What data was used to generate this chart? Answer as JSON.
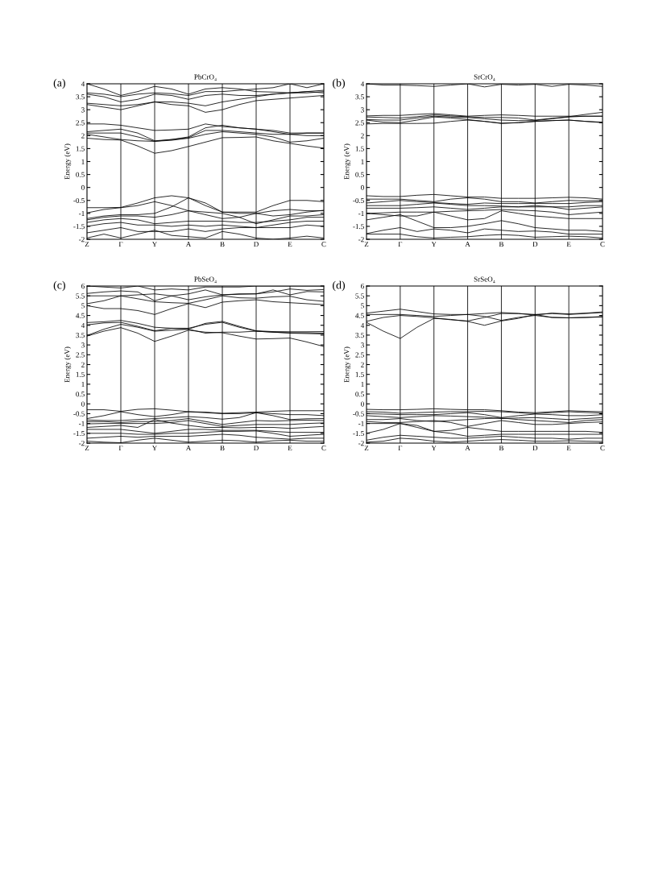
{
  "chart_data": [
    {
      "type": "line",
      "title": "PbCrO₄",
      "ylabel": "Energy (eV)",
      "annotations": [
        "(a)"
      ],
      "legend": false,
      "grid": "x",
      "marker": "none",
      "line_style": "solid",
      "categories": [
        "Z",
        null,
        "Γ",
        null,
        "Y",
        null,
        "A",
        null,
        "B",
        null,
        "D",
        null,
        "E",
        null,
        "C"
      ],
      "ylim": [
        -2,
        4
      ],
      "yticks": [
        -2,
        -1.5,
        -1,
        -0.5,
        0,
        0.5,
        1,
        1.5,
        2,
        2.5,
        3,
        3.5,
        4
      ],
      "series": [
        {
          "color": "#000000",
          "values": [
            1.9,
            1.85,
            1.83,
            1.6,
            1.32,
            1.42,
            1.58,
            1.75,
            1.92,
            1.93,
            1.95,
            1.8,
            1.7,
            1.6,
            1.52
          ]
        },
        {
          "color": "#000000",
          "values": [
            2.05,
            1.95,
            1.85,
            1.8,
            1.78,
            1.82,
            1.9,
            2.05,
            2.15,
            2.1,
            2.05,
            1.95,
            1.75,
            1.8,
            1.9
          ]
        },
        {
          "color": "#000000",
          "values": [
            2.1,
            2.1,
            2.1,
            1.95,
            1.78,
            1.85,
            1.92,
            2.2,
            2.2,
            2.15,
            2.1,
            2.05,
            2.05,
            2.0,
            2.0
          ]
        },
        {
          "color": "#000000",
          "values": [
            2.15,
            2.2,
            2.25,
            2.1,
            1.8,
            1.85,
            1.95,
            2.3,
            2.4,
            2.3,
            2.25,
            2.15,
            2.05,
            2.1,
            2.1
          ]
        },
        {
          "color": "#000000",
          "values": [
            2.45,
            2.45,
            2.4,
            2.3,
            2.2,
            2.22,
            2.25,
            2.45,
            2.35,
            2.3,
            2.25,
            2.2,
            2.1,
            2.1,
            2.1
          ]
        },
        {
          "color": "#000000",
          "values": [
            3.2,
            3.1,
            3.0,
            3.15,
            3.3,
            3.2,
            3.15,
            2.9,
            3.0,
            3.2,
            3.35,
            3.4,
            3.45,
            3.5,
            3.55
          ]
        },
        {
          "color": "#000000",
          "values": [
            3.25,
            3.2,
            3.15,
            3.2,
            3.3,
            3.3,
            3.25,
            3.15,
            3.3,
            3.4,
            3.5,
            3.6,
            3.65,
            3.65,
            3.7
          ]
        },
        {
          "color": "#000000",
          "values": [
            3.6,
            3.5,
            3.3,
            3.4,
            3.6,
            3.55,
            3.4,
            3.55,
            3.6,
            3.55,
            3.55,
            3.6,
            3.65,
            3.7,
            3.75
          ]
        },
        {
          "color": "#000000",
          "values": [
            3.65,
            3.6,
            3.5,
            3.6,
            3.65,
            3.62,
            3.55,
            3.7,
            3.7,
            3.75,
            3.8,
            3.85,
            4.0,
            3.85,
            4.0
          ]
        },
        {
          "color": "#000000",
          "values": [
            4.0,
            3.8,
            3.55,
            3.7,
            3.9,
            3.8,
            3.6,
            3.8,
            3.85,
            3.8,
            3.7,
            3.68,
            3.65,
            3.7,
            3.65
          ]
        },
        {
          "color": "#000000",
          "values": [
            -0.78,
            -0.78,
            -0.77,
            -0.6,
            -0.4,
            -0.32,
            -0.4,
            -0.7,
            -0.95,
            -0.95,
            -0.95,
            -0.7,
            -0.5,
            -0.5,
            -0.55
          ]
        },
        {
          "color": "#000000",
          "values": [
            -0.98,
            -0.85,
            -0.78,
            -0.7,
            -0.55,
            -0.7,
            -0.9,
            -1.05,
            -1.2,
            -1.15,
            -1.0,
            -0.9,
            -0.85,
            -0.9,
            -0.9
          ]
        },
        {
          "color": "#000000",
          "values": [
            -1.2,
            -1.1,
            -1.05,
            -1.05,
            -1.0,
            -0.75,
            -0.4,
            -0.6,
            -0.95,
            -1.0,
            -1.0,
            -1.1,
            -1.05,
            -0.95,
            -0.88
          ]
        },
        {
          "color": "#000000",
          "values": [
            -1.25,
            -1.15,
            -1.1,
            -1.1,
            -1.15,
            -1.05,
            -0.9,
            -0.95,
            -1.0,
            -1.15,
            -1.4,
            -1.25,
            -1.1,
            -1.1,
            -1.05
          ]
        },
        {
          "color": "#000000",
          "values": [
            -1.35,
            -1.25,
            -1.2,
            -1.25,
            -1.4,
            -1.35,
            -1.3,
            -1.3,
            -1.3,
            -1.35,
            -1.35,
            -1.3,
            -1.25,
            -1.15,
            -1.15
          ]
        },
        {
          "color": "#000000",
          "values": [
            -1.5,
            -1.4,
            -1.35,
            -1.45,
            -1.45,
            -1.5,
            -1.45,
            -1.5,
            -1.45,
            -1.5,
            -1.55,
            -1.45,
            -1.35,
            -1.3,
            -1.3
          ]
        },
        {
          "color": "#000000",
          "values": [
            -1.75,
            -1.65,
            -1.55,
            -1.7,
            -1.7,
            -1.7,
            -1.6,
            -1.7,
            -1.6,
            -1.55,
            -1.55,
            -1.55,
            -1.55,
            -1.45,
            -1.5
          ]
        },
        {
          "color": "#000000",
          "values": [
            -1.95,
            -1.8,
            -1.95,
            -1.8,
            -1.65,
            -1.85,
            -1.9,
            -1.95,
            -1.7,
            -1.8,
            -1.95,
            -2.0,
            -1.95,
            -1.88,
            -1.95
          ]
        }
      ]
    },
    {
      "type": "line",
      "title": "SrCrO₄",
      "ylabel": "Energy (eV)",
      "annotations": [
        "(b)"
      ],
      "legend": false,
      "grid": "x",
      "marker": "none",
      "line_style": "solid",
      "categories": [
        "Z",
        null,
        "Γ",
        null,
        "Y",
        null,
        "A",
        null,
        "B",
        null,
        "D",
        null,
        "E",
        null,
        "C"
      ],
      "ylim": [
        -2,
        4
      ],
      "yticks": [
        -2,
        -1.5,
        -1,
        -0.5,
        0,
        0.5,
        1,
        1.5,
        2,
        2.5,
        3,
        3.5,
        4
      ],
      "series": [
        {
          "color": "#000000",
          "values": [
            2.45,
            2.47,
            2.47,
            2.47,
            2.48,
            2.55,
            2.6,
            2.55,
            2.47,
            2.5,
            2.55,
            2.58,
            2.6,
            2.55,
            2.5
          ]
        },
        {
          "color": "#000000",
          "values": [
            2.6,
            2.52,
            2.5,
            2.6,
            2.72,
            2.68,
            2.62,
            2.55,
            2.48,
            2.5,
            2.55,
            2.58,
            2.6,
            2.55,
            2.52
          ]
        },
        {
          "color": "#000000",
          "values": [
            2.62,
            2.6,
            2.6,
            2.68,
            2.75,
            2.72,
            2.7,
            2.65,
            2.6,
            2.58,
            2.58,
            2.65,
            2.72,
            2.75,
            2.75
          ]
        },
        {
          "color": "#000000",
          "values": [
            2.72,
            2.7,
            2.68,
            2.73,
            2.8,
            2.76,
            2.73,
            2.7,
            2.7,
            2.68,
            2.6,
            2.67,
            2.73,
            2.82,
            2.9
          ]
        },
        {
          "color": "#000000",
          "values": [
            2.76,
            2.78,
            2.78,
            2.82,
            2.85,
            2.8,
            2.75,
            2.78,
            2.8,
            2.78,
            2.75,
            2.75,
            2.75,
            2.75,
            2.75
          ]
        },
        {
          "color": "#000000",
          "values": [
            4.0,
            3.95,
            3.95,
            3.93,
            3.9,
            3.95,
            4.0,
            3.88,
            3.98,
            3.95,
            3.98,
            3.9,
            3.98,
            3.95,
            3.9
          ]
        },
        {
          "color": "#000000",
          "values": [
            -0.32,
            -0.35,
            -0.35,
            -0.3,
            -0.27,
            -0.32,
            -0.37,
            -0.37,
            -0.42,
            -0.42,
            -0.42,
            -0.4,
            -0.38,
            -0.4,
            -0.45
          ]
        },
        {
          "color": "#000000",
          "values": [
            -0.45,
            -0.45,
            -0.45,
            -0.5,
            -0.55,
            -0.45,
            -0.4,
            -0.45,
            -0.55,
            -0.55,
            -0.6,
            -0.55,
            -0.5,
            -0.52,
            -0.5
          ]
        },
        {
          "color": "#000000",
          "values": [
            -0.6,
            -0.55,
            -0.5,
            -0.55,
            -0.58,
            -0.62,
            -0.65,
            -0.6,
            -0.62,
            -0.62,
            -0.62,
            -0.62,
            -0.62,
            -0.58,
            -0.55
          ]
        },
        {
          "color": "#000000",
          "values": [
            -0.7,
            -0.7,
            -0.7,
            -0.65,
            -0.6,
            -0.65,
            -0.7,
            -0.7,
            -0.72,
            -0.75,
            -0.75,
            -0.75,
            -0.75,
            -0.7,
            -0.7
          ]
        },
        {
          "color": "#000000",
          "values": [
            -0.8,
            -0.8,
            -0.8,
            -0.78,
            -0.75,
            -0.8,
            -0.85,
            -0.8,
            -0.75,
            -0.75,
            -0.7,
            -0.75,
            -0.85,
            -0.8,
            -0.75
          ]
        },
        {
          "color": "#000000",
          "values": [
            -1.0,
            -0.98,
            -0.95,
            -0.95,
            -0.95,
            -0.92,
            -0.9,
            -0.88,
            -0.85,
            -0.88,
            -0.9,
            -0.95,
            -1.05,
            -1.0,
            -0.95
          ]
        },
        {
          "color": "#000000",
          "values": [
            -1.0,
            -1.05,
            -1.1,
            -1.1,
            -0.95,
            -1.1,
            -1.25,
            -1.2,
            -0.9,
            -1.0,
            -1.1,
            -1.15,
            -1.2,
            -1.2,
            -1.2
          ]
        },
        {
          "color": "#000000",
          "values": [
            -1.25,
            -1.15,
            -1.05,
            -1.3,
            -1.55,
            -1.55,
            -1.5,
            -1.4,
            -1.28,
            -1.4,
            -1.55,
            -1.6,
            -1.65,
            -1.65,
            -1.7
          ]
        },
        {
          "color": "#000000",
          "values": [
            -1.78,
            -1.65,
            -1.55,
            -1.7,
            -1.6,
            -1.65,
            -1.75,
            -1.6,
            -1.65,
            -1.7,
            -1.68,
            -1.72,
            -1.8,
            -1.8,
            -1.8
          ]
        },
        {
          "color": "#000000",
          "values": [
            -1.8,
            -1.8,
            -1.8,
            -1.9,
            -1.95,
            -1.92,
            -1.9,
            -1.85,
            -1.82,
            -1.85,
            -1.92,
            -1.9,
            -1.88,
            -1.9,
            -1.95
          ]
        }
      ]
    },
    {
      "type": "line",
      "title": "PbSeO₄",
      "ylabel": "Energy (eV)",
      "annotations": [
        "(c)"
      ],
      "legend": false,
      "grid": "x",
      "marker": "none",
      "line_style": "solid",
      "categories": [
        "Z",
        null,
        "Γ",
        null,
        "Y",
        null,
        "A",
        null,
        "B",
        null,
        "D",
        null,
        "E",
        null,
        "C"
      ],
      "ylim": [
        -2,
        6
      ],
      "yticks": [
        -2,
        -1.5,
        -1,
        -0.5,
        0,
        0.5,
        1,
        1.5,
        2,
        2.5,
        3,
        3.5,
        4,
        4.5,
        5,
        5.5,
        6
      ],
      "series": [
        {
          "color": "#000000",
          "values": [
            3.45,
            3.7,
            3.88,
            3.6,
            3.18,
            3.45,
            3.75,
            3.65,
            3.62,
            3.45,
            3.3,
            3.32,
            3.35,
            3.15,
            2.92
          ]
        },
        {
          "color": "#000000",
          "values": [
            3.48,
            3.8,
            4.05,
            3.9,
            3.7,
            3.75,
            3.8,
            3.6,
            3.65,
            3.65,
            3.7,
            3.65,
            3.62,
            3.62,
            3.6
          ]
        },
        {
          "color": "#000000",
          "values": [
            4.02,
            4.12,
            4.15,
            3.95,
            3.72,
            3.85,
            3.85,
            4.05,
            4.15,
            3.9,
            3.7,
            3.65,
            3.6,
            3.58,
            3.56
          ]
        },
        {
          "color": "#000000",
          "values": [
            4.14,
            4.18,
            4.25,
            4.1,
            3.9,
            3.85,
            3.8,
            4.1,
            4.2,
            3.95,
            3.72,
            3.68,
            3.67,
            3.67,
            3.68
          ]
        },
        {
          "color": "#000000",
          "values": [
            5.0,
            4.85,
            4.85,
            4.75,
            4.55,
            4.85,
            5.1,
            4.9,
            5.18,
            5.25,
            5.3,
            5.2,
            5.15,
            5.1,
            5.05
          ]
        },
        {
          "color": "#000000",
          "values": [
            5.1,
            5.25,
            5.5,
            5.35,
            5.2,
            5.15,
            5.12,
            5.3,
            5.5,
            5.4,
            5.38,
            5.45,
            5.48,
            5.3,
            5.22
          ]
        },
        {
          "color": "#000000",
          "values": [
            5.5,
            5.5,
            5.5,
            5.55,
            5.6,
            5.5,
            5.3,
            5.45,
            5.55,
            5.6,
            5.6,
            5.8,
            5.55,
            5.72,
            5.7
          ]
        },
        {
          "color": "#000000",
          "values": [
            5.62,
            5.7,
            5.75,
            5.7,
            5.25,
            5.5,
            5.6,
            5.8,
            5.55,
            5.58,
            5.6,
            5.7,
            5.85,
            5.78,
            5.82
          ]
        },
        {
          "color": "#000000",
          "values": [
            6.0,
            5.95,
            5.9,
            6.0,
            5.8,
            5.85,
            5.8,
            5.95,
            5.95,
            5.95,
            6.0,
            6.0,
            6.0,
            6.0,
            6.0
          ]
        },
        {
          "color": "#000000",
          "values": [
            -0.3,
            -0.3,
            -0.38,
            -0.28,
            -0.25,
            -0.32,
            -0.4,
            -0.42,
            -0.48,
            -0.45,
            -0.42,
            -0.38,
            -0.35,
            -0.35,
            -0.35
          ]
        },
        {
          "color": "#000000",
          "values": [
            -0.75,
            -0.6,
            -0.4,
            -0.55,
            -0.65,
            -0.55,
            -0.4,
            -0.45,
            -0.5,
            -0.5,
            -0.45,
            -0.5,
            -0.55,
            -0.55,
            -0.6
          ]
        },
        {
          "color": "#000000",
          "values": [
            -0.82,
            -0.85,
            -0.85,
            -0.8,
            -0.75,
            -0.7,
            -0.65,
            -0.7,
            -0.78,
            -0.7,
            -0.45,
            -0.6,
            -0.8,
            -0.76,
            -0.75
          ]
        },
        {
          "color": "#000000",
          "values": [
            -0.91,
            -0.9,
            -0.95,
            -0.9,
            -0.9,
            -0.85,
            -0.75,
            -0.9,
            -1.05,
            -0.95,
            -0.85,
            -0.88,
            -0.85,
            -0.83,
            -0.85
          ]
        },
        {
          "color": "#000000",
          "values": [
            -1.02,
            -1.0,
            -1.0,
            -1.0,
            -1.0,
            -0.95,
            -0.85,
            -1.0,
            -1.15,
            -1.1,
            -1.05,
            -1.05,
            -1.05,
            -1.0,
            -0.97
          ]
        },
        {
          "color": "#000000",
          "values": [
            -1.2,
            -1.15,
            -1.1,
            -1.2,
            -0.8,
            -0.98,
            -1.1,
            -1.2,
            -1.2,
            -1.22,
            -1.2,
            -1.2,
            -1.25,
            -1.2,
            -1.15
          ]
        },
        {
          "color": "#000000",
          "values": [
            -1.3,
            -1.3,
            -1.3,
            -1.4,
            -1.5,
            -1.4,
            -1.3,
            -1.3,
            -1.35,
            -1.35,
            -1.35,
            -1.4,
            -1.45,
            -1.45,
            -1.45
          ]
        },
        {
          "color": "#000000",
          "values": [
            -1.5,
            -1.5,
            -1.5,
            -1.55,
            -1.55,
            -1.5,
            -1.5,
            -1.45,
            -1.4,
            -1.4,
            -1.38,
            -1.5,
            -1.65,
            -1.6,
            -1.55
          ]
        },
        {
          "color": "#000000",
          "values": [
            -1.75,
            -1.7,
            -1.65,
            -1.7,
            -1.65,
            -1.65,
            -1.65,
            -1.6,
            -1.55,
            -1.6,
            -1.7,
            -1.75,
            -1.8,
            -1.75,
            -1.75
          ]
        },
        {
          "color": "#000000",
          "values": [
            -1.9,
            -1.95,
            -1.98,
            -1.85,
            -1.75,
            -1.85,
            -1.95,
            -1.9,
            -1.85,
            -1.88,
            -1.95,
            -1.88,
            -1.85,
            -1.9,
            -1.9
          ]
        }
      ]
    },
    {
      "type": "line",
      "title": "SrSeO₄",
      "ylabel": "Energy (eV)",
      "annotations": [
        "(d)"
      ],
      "legend": false,
      "grid": "x",
      "marker": "none",
      "line_style": "solid",
      "categories": [
        "Z",
        null,
        "Γ",
        null,
        "Y",
        null,
        "A",
        null,
        "B",
        null,
        "D",
        null,
        "E",
        null,
        "C"
      ],
      "ylim": [
        -2,
        6
      ],
      "yticks": [
        -2,
        -1.5,
        -1,
        -0.5,
        0,
        0.5,
        1,
        1.5,
        2,
        2.5,
        3,
        3.5,
        4,
        4.5,
        5,
        5.5,
        6
      ],
      "series": [
        {
          "color": "#000000",
          "values": [
            4.15,
            3.7,
            3.33,
            3.9,
            4.35,
            4.3,
            4.2,
            4.0,
            4.22,
            4.35,
            4.55,
            4.4,
            4.38,
            4.4,
            4.42
          ]
        },
        {
          "color": "#000000",
          "values": [
            4.2,
            4.4,
            4.5,
            4.45,
            4.38,
            4.28,
            4.22,
            4.4,
            4.6,
            4.6,
            4.55,
            4.6,
            4.55,
            4.6,
            4.65
          ]
        },
        {
          "color": "#000000",
          "values": [
            4.55,
            4.55,
            4.55,
            4.5,
            4.45,
            4.5,
            4.55,
            4.45,
            4.25,
            4.4,
            4.5,
            4.4,
            4.38,
            4.4,
            4.45
          ]
        },
        {
          "color": "#000000",
          "values": [
            4.62,
            4.72,
            4.82,
            4.7,
            4.58,
            4.55,
            4.55,
            4.6,
            4.65,
            4.6,
            4.52,
            4.62,
            4.58,
            4.62,
            4.68
          ]
        },
        {
          "color": "#000000",
          "values": [
            -0.28,
            -0.3,
            -0.3,
            -0.28,
            -0.25,
            -0.28,
            -0.3,
            -0.3,
            -0.35,
            -0.42,
            -0.45,
            -0.4,
            -0.35,
            -0.38,
            -0.4
          ]
        },
        {
          "color": "#000000",
          "values": [
            -0.4,
            -0.42,
            -0.48,
            -0.45,
            -0.42,
            -0.4,
            -0.4,
            -0.38,
            -0.4,
            -0.45,
            -0.5,
            -0.45,
            -0.4,
            -0.44,
            -0.47
          ]
        },
        {
          "color": "#000000",
          "values": [
            -0.5,
            -0.52,
            -0.55,
            -0.55,
            -0.55,
            -0.5,
            -0.45,
            -0.55,
            -0.7,
            -0.6,
            -0.52,
            -0.55,
            -0.6,
            -0.6,
            -0.55
          ]
        },
        {
          "color": "#000000",
          "values": [
            -0.6,
            -0.65,
            -0.7,
            -0.65,
            -0.6,
            -0.62,
            -0.65,
            -0.68,
            -0.75,
            -0.72,
            -0.7,
            -0.75,
            -0.8,
            -0.75,
            -0.7
          ]
        },
        {
          "color": "#000000",
          "values": [
            -0.8,
            -0.8,
            -0.75,
            -0.85,
            -0.9,
            -0.85,
            -0.8,
            -0.75,
            -0.72,
            -0.8,
            -0.85,
            -0.9,
            -0.95,
            -0.85,
            -0.8
          ]
        },
        {
          "color": "#000000",
          "values": [
            -0.9,
            -0.95,
            -0.95,
            -0.9,
            -0.85,
            -0.95,
            -1.15,
            -1.0,
            -0.85,
            -0.95,
            -1.05,
            -1.05,
            -1.0,
            -0.95,
            -0.92
          ]
        },
        {
          "color": "#000000",
          "values": [
            -1.0,
            -1.0,
            -1.0,
            -1.2,
            -1.4,
            -1.35,
            -1.2,
            -1.3,
            -1.4,
            -1.4,
            -1.4,
            -1.4,
            -1.4,
            -1.4,
            -1.45
          ]
        },
        {
          "color": "#000000",
          "values": [
            -1.5,
            -1.3,
            -1.0,
            -1.1,
            -1.4,
            -1.5,
            -1.65,
            -1.6,
            -1.55,
            -1.55,
            -1.55,
            -1.55,
            -1.55,
            -1.55,
            -1.55
          ]
        },
        {
          "color": "#000000",
          "values": [
            -1.85,
            -1.7,
            -1.6,
            -1.65,
            -1.7,
            -1.75,
            -1.75,
            -1.7,
            -1.65,
            -1.7,
            -1.75,
            -1.75,
            -1.8,
            -1.75,
            -1.75
          ]
        },
        {
          "color": "#000000",
          "values": [
            -1.95,
            -1.9,
            -1.75,
            -1.8,
            -1.9,
            -1.95,
            -1.9,
            -1.85,
            -1.82,
            -1.85,
            -1.9,
            -1.9,
            -1.88,
            -1.9,
            -1.92
          ]
        }
      ]
    }
  ]
}
